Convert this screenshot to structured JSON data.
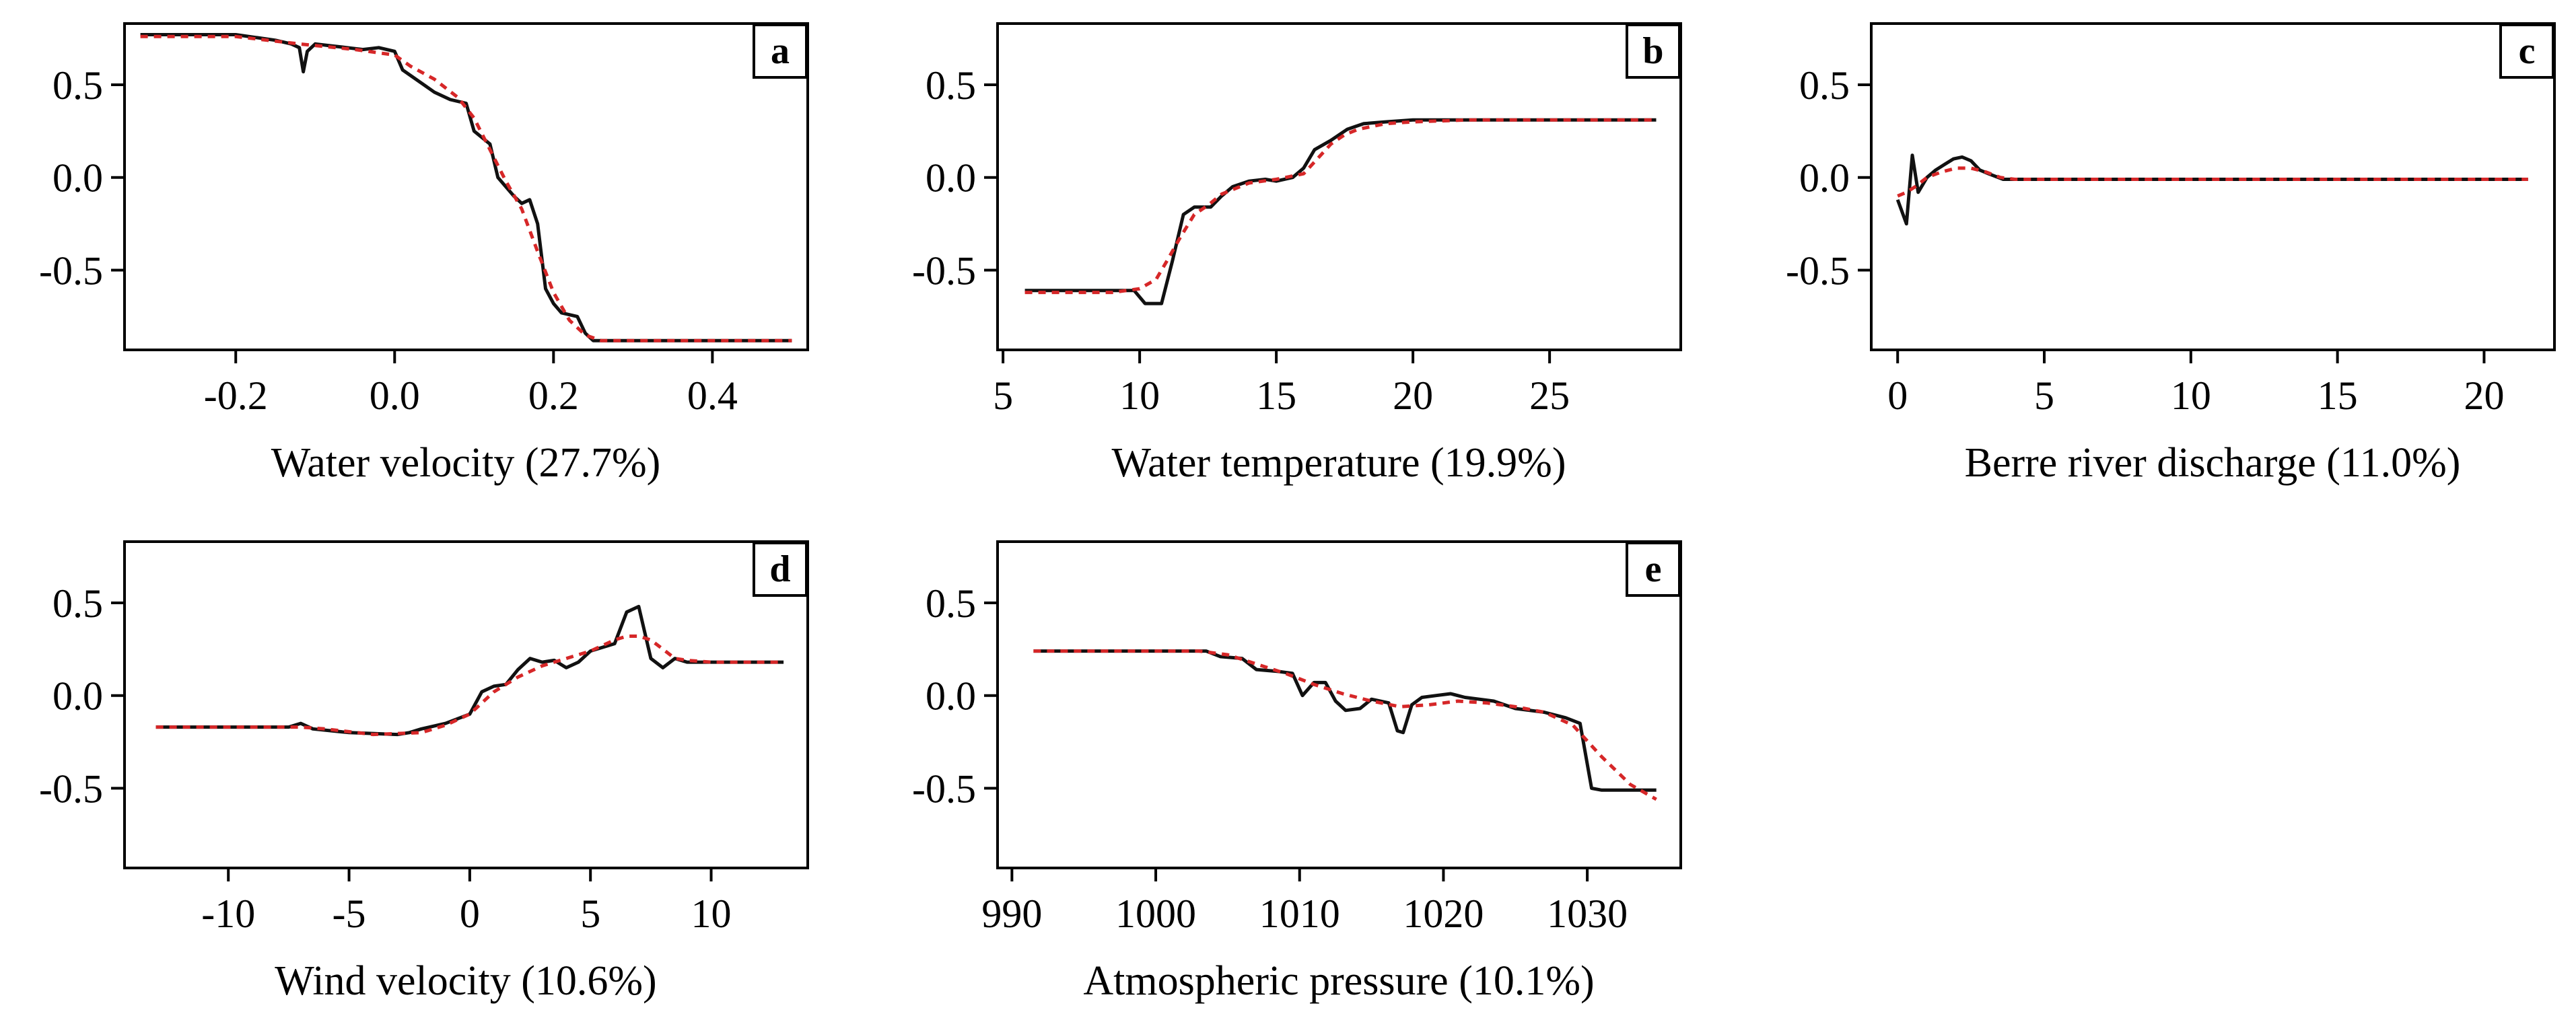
{
  "colors": {
    "observed": "#111111",
    "fitted": "#d62728",
    "axis": "#000000",
    "background": "#ffffff"
  },
  "chart_data": [
    {
      "type": "line",
      "panel": "a",
      "xlabel": "Water velocity (27.7%)",
      "xlim": [
        -0.34,
        0.52
      ],
      "ylim": [
        -0.93,
        0.83
      ],
      "xticks": [
        -0.2,
        0.0,
        0.2,
        0.4
      ],
      "xtick_labels": [
        "-0.2",
        "0.0",
        "0.2",
        "0.4"
      ],
      "yticks": [
        0.5,
        0.0,
        -0.5
      ],
      "ytick_labels": [
        "0.5",
        "0.0",
        "-0.5"
      ],
      "series": [
        {
          "name": "observed",
          "style": "solid",
          "x": [
            -0.32,
            -0.2,
            -0.15,
            -0.13,
            -0.12,
            -0.115,
            -0.11,
            -0.1,
            -0.08,
            -0.06,
            -0.04,
            -0.02,
            0.0,
            0.01,
            0.03,
            0.05,
            0.07,
            0.09,
            0.1,
            0.12,
            0.13,
            0.15,
            0.16,
            0.17,
            0.18,
            0.19,
            0.2,
            0.21,
            0.23,
            0.24,
            0.25,
            0.27,
            0.3,
            0.5
          ],
          "y": [
            0.77,
            0.77,
            0.74,
            0.72,
            0.7,
            0.57,
            0.68,
            0.72,
            0.71,
            0.7,
            0.69,
            0.7,
            0.68,
            0.58,
            0.52,
            0.46,
            0.42,
            0.4,
            0.25,
            0.18,
            0.0,
            -0.1,
            -0.14,
            -0.12,
            -0.25,
            -0.6,
            -0.68,
            -0.73,
            -0.75,
            -0.84,
            -0.88,
            -0.88,
            -0.88,
            -0.88
          ]
        },
        {
          "name": "fitted",
          "style": "dashed",
          "x": [
            -0.32,
            -0.2,
            -0.12,
            -0.05,
            0.0,
            0.02,
            0.05,
            0.08,
            0.1,
            0.12,
            0.14,
            0.16,
            0.18,
            0.2,
            0.22,
            0.24,
            0.26,
            0.3,
            0.5
          ],
          "y": [
            0.76,
            0.76,
            0.72,
            0.69,
            0.66,
            0.6,
            0.53,
            0.43,
            0.32,
            0.15,
            -0.02,
            -0.17,
            -0.4,
            -0.62,
            -0.77,
            -0.85,
            -0.88,
            -0.88,
            -0.88
          ]
        }
      ]
    },
    {
      "type": "line",
      "panel": "b",
      "xlabel": "Water temperature (19.9%)",
      "xlim": [
        4.8,
        29.8
      ],
      "ylim": [
        -0.93,
        0.83
      ],
      "xticks": [
        5,
        10,
        15,
        20,
        25
      ],
      "xtick_labels": [
        "5",
        "10",
        "15",
        "20",
        "25"
      ],
      "yticks": [
        0.5,
        0.0,
        -0.5
      ],
      "ytick_labels": [
        "0.5",
        "0.0",
        "-0.5"
      ],
      "series": [
        {
          "name": "observed",
          "style": "solid",
          "x": [
            5.8,
            9.8,
            10.2,
            10.8,
            11.2,
            11.6,
            12.0,
            12.6,
            13.0,
            13.4,
            14.0,
            14.6,
            15.0,
            15.6,
            16.0,
            16.4,
            17.0,
            17.6,
            18.2,
            19.0,
            20.0,
            22.0,
            28.9
          ],
          "y": [
            -0.61,
            -0.61,
            -0.68,
            -0.68,
            -0.45,
            -0.2,
            -0.16,
            -0.16,
            -0.1,
            -0.05,
            -0.02,
            -0.01,
            -0.02,
            0.0,
            0.05,
            0.15,
            0.2,
            0.26,
            0.29,
            0.3,
            0.31,
            0.31,
            0.31
          ]
        },
        {
          "name": "fitted",
          "style": "dashed",
          "x": [
            5.8,
            9.0,
            10.0,
            10.6,
            11.0,
            11.5,
            12.0,
            12.5,
            13.0,
            14.0,
            15.0,
            16.0,
            16.5,
            17.0,
            17.5,
            18.0,
            19.0,
            20.0,
            22.0,
            28.9
          ],
          "y": [
            -0.62,
            -0.62,
            -0.6,
            -0.55,
            -0.45,
            -0.32,
            -0.2,
            -0.15,
            -0.09,
            -0.03,
            -0.01,
            0.02,
            0.1,
            0.18,
            0.23,
            0.26,
            0.29,
            0.3,
            0.31,
            0.31
          ]
        }
      ]
    },
    {
      "type": "line",
      "panel": "c",
      "xlabel": "Berre river discharge (11.0%)",
      "xlim": [
        -0.9,
        22.4
      ],
      "ylim": [
        -0.93,
        0.83
      ],
      "xticks": [
        0,
        5,
        10,
        15,
        20
      ],
      "xtick_labels": [
        "0",
        "5",
        "10",
        "15",
        "20"
      ],
      "yticks": [
        0.5,
        0.0,
        -0.5
      ],
      "ytick_labels": [
        "0.5",
        "0.0",
        "-0.5"
      ],
      "series": [
        {
          "name": "observed",
          "style": "solid",
          "x": [
            0.0,
            0.3,
            0.5,
            0.7,
            1.0,
            1.3,
            1.6,
            1.9,
            2.2,
            2.5,
            2.8,
            3.1,
            3.6,
            4.0,
            21.5
          ],
          "y": [
            -0.12,
            -0.25,
            0.12,
            -0.08,
            0.0,
            0.04,
            0.07,
            0.1,
            0.11,
            0.09,
            0.04,
            0.02,
            -0.01,
            -0.01,
            -0.01
          ]
        },
        {
          "name": "fitted",
          "style": "dashed",
          "x": [
            0.0,
            0.3,
            0.6,
            1.0,
            1.5,
            2.0,
            2.5,
            3.0,
            3.5,
            4.0,
            21.5
          ],
          "y": [
            -0.1,
            -0.08,
            -0.05,
            0.0,
            0.03,
            0.05,
            0.05,
            0.03,
            0.0,
            -0.01,
            -0.01
          ]
        }
      ]
    },
    {
      "type": "line",
      "panel": "d",
      "xlabel": "Wind velocity (10.6%)",
      "xlim": [
        -14.3,
        14.0
      ],
      "ylim": [
        -0.93,
        0.83
      ],
      "xticks": [
        -10,
        -5,
        0,
        5,
        10
      ],
      "xtick_labels": [
        "-10",
        "-5",
        "0",
        "5",
        "10"
      ],
      "yticks": [
        0.5,
        0.0,
        -0.5
      ],
      "ytick_labels": [
        "0.5",
        "0.0",
        "-0.5"
      ],
      "series": [
        {
          "name": "observed",
          "style": "solid",
          "x": [
            -13,
            -7.5,
            -7,
            -6.5,
            -5,
            -3,
            -2.5,
            -2,
            -1,
            0,
            0.5,
            1,
            1.5,
            2,
            2.5,
            3,
            3.5,
            4,
            4.5,
            5,
            5.5,
            6,
            6.5,
            7,
            7.5,
            8,
            8.5,
            9,
            10,
            13
          ],
          "y": [
            -0.17,
            -0.17,
            -0.15,
            -0.18,
            -0.2,
            -0.21,
            -0.2,
            -0.18,
            -0.15,
            -0.1,
            0.02,
            0.05,
            0.06,
            0.14,
            0.2,
            0.18,
            0.19,
            0.15,
            0.18,
            0.24,
            0.26,
            0.28,
            0.45,
            0.48,
            0.2,
            0.15,
            0.2,
            0.18,
            0.18,
            0.18
          ]
        },
        {
          "name": "fitted",
          "style": "dashed",
          "x": [
            -13,
            -7,
            -6,
            -4,
            -2,
            -1,
            0,
            1,
            2,
            3,
            4,
            5,
            6,
            6.5,
            7,
            7.5,
            8,
            8.5,
            9,
            10,
            13
          ],
          "y": [
            -0.17,
            -0.17,
            -0.18,
            -0.21,
            -0.2,
            -0.16,
            -0.1,
            0.02,
            0.1,
            0.16,
            0.2,
            0.24,
            0.3,
            0.32,
            0.32,
            0.3,
            0.25,
            0.2,
            0.19,
            0.18,
            0.18
          ]
        }
      ]
    },
    {
      "type": "line",
      "panel": "e",
      "xlabel": "Atmospheric pressure (10.1%)",
      "xlim": [
        989,
        1036.5
      ],
      "ylim": [
        -0.93,
        0.83
      ],
      "xticks": [
        990,
        1000,
        1010,
        1020,
        1030
      ],
      "xtick_labels": [
        "990",
        "1000",
        "1010",
        "1020",
        "1030"
      ],
      "yticks": [
        0.5,
        0.0,
        -0.5
      ],
      "ytick_labels": [
        "0.5",
        "0.0",
        "-0.5"
      ],
      "series": [
        {
          "name": "observed",
          "style": "solid",
          "x": [
            991.5,
            1003.5,
            1004.5,
            1006,
            1007,
            1008.5,
            1009.5,
            1010.2,
            1011,
            1011.8,
            1012.5,
            1013.2,
            1014.2,
            1015,
            1016.2,
            1016.8,
            1017.2,
            1017.8,
            1018.5,
            1019.5,
            1020.5,
            1021.5,
            1022.5,
            1023.5,
            1025,
            1027,
            1028.5,
            1029.5,
            1030.3,
            1031,
            1034.8
          ],
          "y": [
            0.24,
            0.24,
            0.21,
            0.2,
            0.14,
            0.13,
            0.12,
            0.0,
            0.07,
            0.07,
            -0.03,
            -0.08,
            -0.07,
            -0.02,
            -0.04,
            -0.19,
            -0.2,
            -0.05,
            -0.01,
            0.0,
            0.01,
            -0.01,
            -0.02,
            -0.03,
            -0.07,
            -0.09,
            -0.12,
            -0.15,
            -0.5,
            -0.51,
            -0.51
          ]
        },
        {
          "name": "fitted",
          "style": "dashed",
          "x": [
            991.5,
            1003,
            1005,
            1007,
            1009,
            1011,
            1013,
            1015,
            1017,
            1019,
            1021,
            1023,
            1025,
            1027,
            1029,
            1031,
            1033,
            1034.8
          ],
          "y": [
            0.24,
            0.24,
            0.22,
            0.17,
            0.12,
            0.06,
            0.01,
            -0.03,
            -0.06,
            -0.05,
            -0.03,
            -0.04,
            -0.06,
            -0.09,
            -0.16,
            -0.33,
            -0.48,
            -0.56
          ]
        }
      ]
    }
  ]
}
